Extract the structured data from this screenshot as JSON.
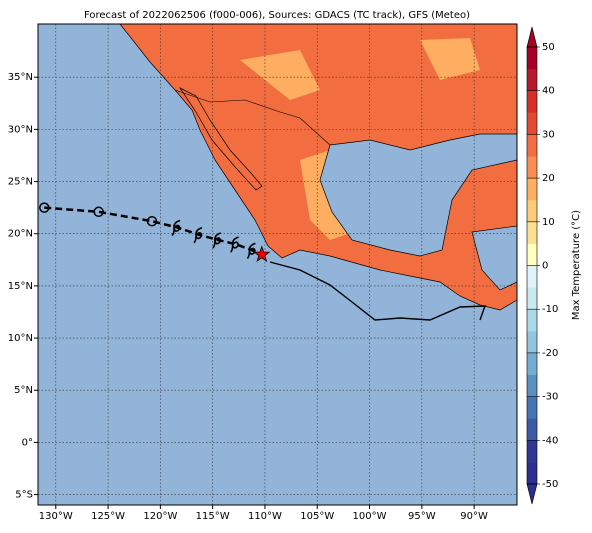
{
  "title": "Forecast of 2022062506 (f000-006), Sources: GDACS (TC track), GFS (Meteo)",
  "map": {
    "xlim": [
      -131.7,
      -85.9
    ],
    "ylim": [
      -6.0,
      40.1
    ],
    "xticks": [
      {
        "value": -130,
        "label": "130°W"
      },
      {
        "value": -125,
        "label": "125°W"
      },
      {
        "value": -120,
        "label": "120°W"
      },
      {
        "value": -115,
        "label": "115°W"
      },
      {
        "value": -110,
        "label": "110°W"
      },
      {
        "value": -105,
        "label": "105°W"
      },
      {
        "value": -100,
        "label": "100°W"
      },
      {
        "value": -95,
        "label": "95°W"
      },
      {
        "value": -90,
        "label": "90°W"
      }
    ],
    "yticks": [
      {
        "value": -5,
        "label": "5°S"
      },
      {
        "value": 0,
        "label": "0°"
      },
      {
        "value": 5,
        "label": "5°N"
      },
      {
        "value": 10,
        "label": "10°N"
      },
      {
        "value": 15,
        "label": "15°N"
      },
      {
        "value": 20,
        "label": "20°N"
      },
      {
        "value": 25,
        "label": "25°N"
      },
      {
        "value": 30,
        "label": "30°N"
      },
      {
        "value": 35,
        "label": "35°N"
      }
    ],
    "grid": true
  },
  "track": {
    "lon": [
      -131.1,
      -125.9,
      -120.8,
      -118.4,
      -116.3,
      -114.5,
      -112.8,
      -111.2,
      -110.3
    ],
    "lat": [
      22.5,
      22.1,
      21.2,
      20.6,
      19.9,
      19.4,
      19.0,
      18.4,
      18.0
    ]
  },
  "colorbar": {
    "label": "Max Temperature (°C)",
    "lim": [
      -50,
      50
    ],
    "ticks": [
      -50,
      -40,
      -30,
      -20,
      -10,
      0,
      10,
      20,
      30,
      40,
      50
    ],
    "colors": [
      "#2b2d8f",
      "#313695",
      "#3c5aa6",
      "#4575b4",
      "#5b8fc2",
      "#74add1",
      "#92c5de",
      "#abd9e9",
      "#c9e8f0",
      "#e0f3f8",
      "#ffffbf",
      "#fee090",
      "#fdcb7a",
      "#fdae61",
      "#f98e52",
      "#f46d43",
      "#e34a33",
      "#d73027",
      "#b81a2d",
      "#a50026"
    ]
  }
}
